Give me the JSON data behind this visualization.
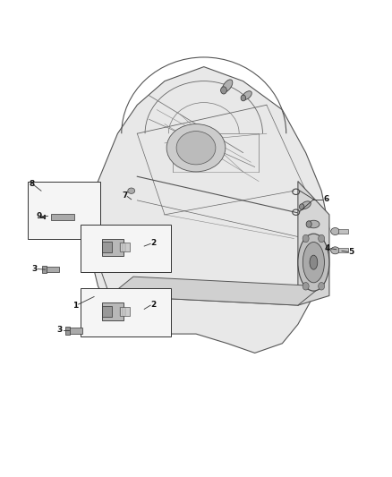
{
  "background_color": "#ffffff",
  "fig_width": 4.38,
  "fig_height": 5.33,
  "dpi": 100,
  "trans_outline_x": [
    0.3,
    0.35,
    0.42,
    0.52,
    0.62,
    0.72,
    0.78,
    0.82,
    0.84,
    0.82,
    0.8,
    0.76,
    0.72,
    0.65,
    0.58,
    0.5,
    0.4,
    0.3,
    0.25,
    0.22,
    0.24,
    0.28,
    0.3
  ],
  "trans_outline_y": [
    0.72,
    0.78,
    0.83,
    0.86,
    0.83,
    0.77,
    0.68,
    0.6,
    0.52,
    0.44,
    0.38,
    0.32,
    0.28,
    0.26,
    0.28,
    0.3,
    0.3,
    0.32,
    0.4,
    0.5,
    0.6,
    0.68,
    0.72
  ],
  "edge_color": "#555555",
  "face_color_main": "#e8e8e8",
  "face_color_right": "#d5d5d5",
  "face_color_pan": "#d0d0d0"
}
